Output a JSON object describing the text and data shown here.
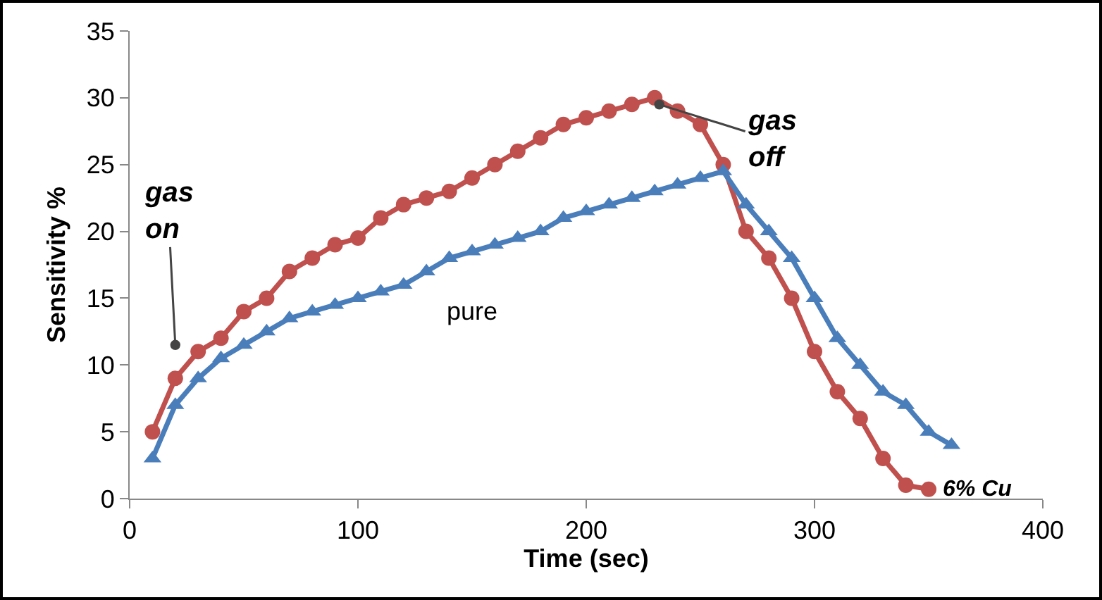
{
  "chart_data": {
    "type": "line",
    "xlabel": "Time (sec)",
    "ylabel": "Sensitivity %",
    "xlim": [
      0,
      400
    ],
    "xticks": [
      0,
      100,
      200,
      300,
      400
    ],
    "ylim": [
      0,
      35
    ],
    "yticks": [
      0,
      5,
      10,
      15,
      20,
      25,
      30,
      35
    ],
    "grid": false,
    "legend": false,
    "series": [
      {
        "name": "6% Cu",
        "color": "#c0504d",
        "marker": "circle",
        "x": [
          10,
          20,
          30,
          40,
          50,
          60,
          70,
          80,
          90,
          100,
          110,
          120,
          130,
          140,
          150,
          160,
          170,
          180,
          190,
          200,
          210,
          220,
          230,
          240,
          250,
          260,
          270,
          280,
          290,
          300,
          310,
          320,
          330,
          340,
          350
        ],
        "values": [
          5,
          9,
          11,
          12,
          14,
          15,
          17,
          18,
          19,
          19.5,
          21,
          22,
          22.5,
          23,
          24,
          25,
          26,
          27,
          28,
          28.5,
          29,
          29.5,
          30,
          29,
          28,
          25,
          20,
          18,
          15,
          11,
          8,
          6,
          3,
          1,
          0.7
        ]
      },
      {
        "name": "pure",
        "color": "#4a7ebb",
        "marker": "triangle",
        "x": [
          10,
          20,
          30,
          40,
          50,
          60,
          70,
          80,
          90,
          100,
          110,
          120,
          130,
          140,
          150,
          160,
          170,
          180,
          190,
          200,
          210,
          220,
          230,
          240,
          250,
          260,
          270,
          280,
          290,
          300,
          310,
          320,
          330,
          340,
          350,
          360
        ],
        "values": [
          3,
          7,
          9,
          10.5,
          11.5,
          12.5,
          13.5,
          14,
          14.5,
          15,
          15.5,
          16,
          17,
          18,
          18.5,
          19,
          19.5,
          20,
          21,
          21.5,
          22,
          22.5,
          23,
          23.5,
          24,
          24.5,
          22,
          20,
          18,
          15,
          12,
          10,
          8,
          7,
          5,
          4
        ]
      }
    ],
    "annotations": [
      {
        "text": "gas on",
        "x": 20,
        "y": 11.5
      },
      {
        "text": "gas off",
        "x": 232,
        "y": 29.5
      }
    ]
  }
}
